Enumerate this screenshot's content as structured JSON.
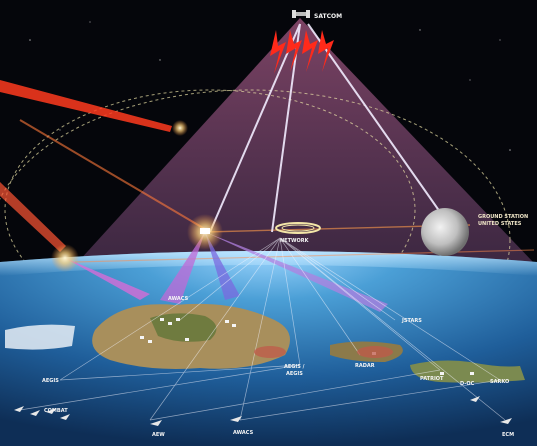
{
  "scene": {
    "labels": {
      "satcom": "SATCOM",
      "moon_line1": "GROUND STATION",
      "moon_line2": "UNITED STATES",
      "awacs_top": "AWACS",
      "jstars": "JSTARS",
      "patriot": "PATRIOT",
      "d_oc": "D-OC",
      "sarko": "SARKO",
      "aegis_left": "AEGIS",
      "combat": "COMBAT",
      "awacs_bottom": "AWACS",
      "aew": "AEW",
      "ecm": "ECM",
      "aegis_center_1": "AEGIS /",
      "aegis_center_2": "AEGIS",
      "radar": "RADAR",
      "ring_text": "NETWORK"
    },
    "colors": {
      "space": "#05060b",
      "cone": "#6b3b5a",
      "ocean": "#2b7bb8",
      "land": "#9c8a5a",
      "laser": "#ff3b1e",
      "beam": "#e9e3ff"
    }
  }
}
